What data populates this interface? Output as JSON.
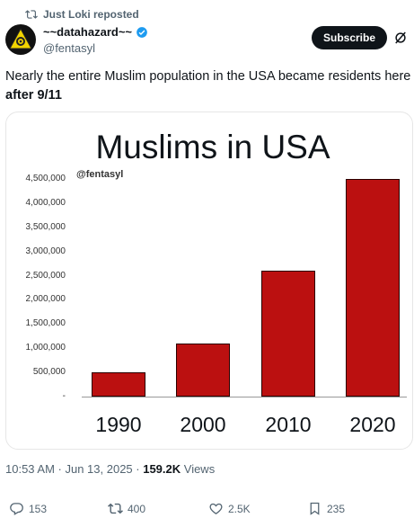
{
  "repost_header": {
    "text": "Just Loki reposted"
  },
  "author": {
    "display_name": "~~datahazard~~",
    "handle": "@fentasyl"
  },
  "subscribe_label": "Subscribe",
  "post": {
    "text_line1": "Nearly the entire Muslim population in the USA became residents here",
    "text_line2": "after 9/11"
  },
  "chart_data": {
    "type": "bar",
    "title": "Muslims in USA",
    "watermark": "@fentasyl",
    "categories": [
      "1990",
      "2000",
      "2010",
      "2020"
    ],
    "values": [
      500000,
      1100000,
      2600000,
      4500000
    ],
    "yticks": [
      "-",
      "500,000",
      "1,000,000",
      "1,500,000",
      "2,000,000",
      "2,500,000",
      "3,000,000",
      "3,500,000",
      "4,000,000",
      "4,500,000"
    ],
    "ylim": [
      0,
      4500000
    ],
    "bar_color": "#bb1010",
    "grid": false
  },
  "meta": {
    "timestamp": "10:53 AM · Jun 13, 2025 · ",
    "views_count": "159.2K",
    "views_label": " Views"
  },
  "actions": {
    "replies": "153",
    "reposts": "400",
    "likes": "2.5K",
    "bookmarks": "235"
  }
}
